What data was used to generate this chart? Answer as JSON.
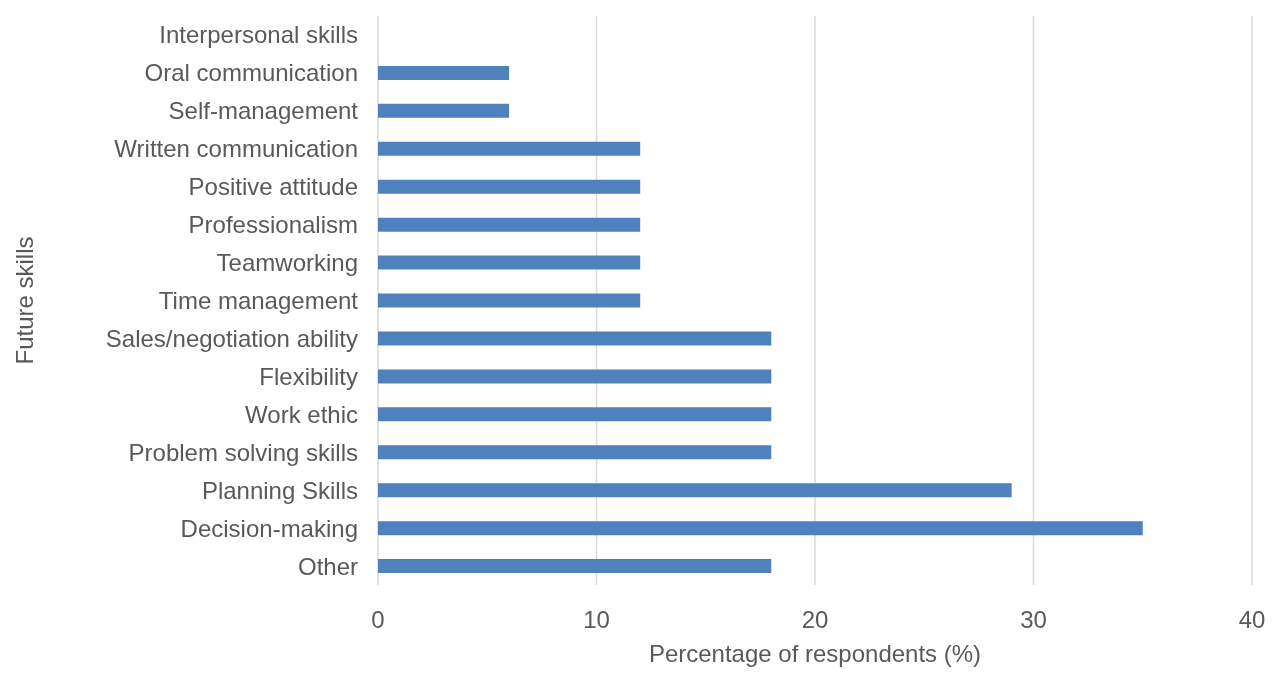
{
  "chart_data": {
    "type": "bar",
    "orientation": "horizontal",
    "xlabel": "Percentage of respondents (%)",
    "ylabel": "Future skills",
    "categories": [
      "Interpersonal skills",
      "Oral communication",
      "Self-management",
      "Written communication",
      "Positive attitude",
      "Professionalism",
      "Teamworking",
      "Time management",
      "Sales/negotiation ability",
      "Flexibility",
      "Work ethic",
      "Problem solving skills",
      "Planning Skills",
      "Decision-making",
      "Other"
    ],
    "values": [
      0,
      6,
      6,
      12,
      12,
      12,
      12,
      12,
      18,
      18,
      18,
      18,
      29,
      35,
      18
    ],
    "color": "#4f81bd",
    "xlim": [
      0,
      40
    ],
    "xticks": [
      0,
      10,
      20,
      30,
      40
    ],
    "grid": "x"
  }
}
